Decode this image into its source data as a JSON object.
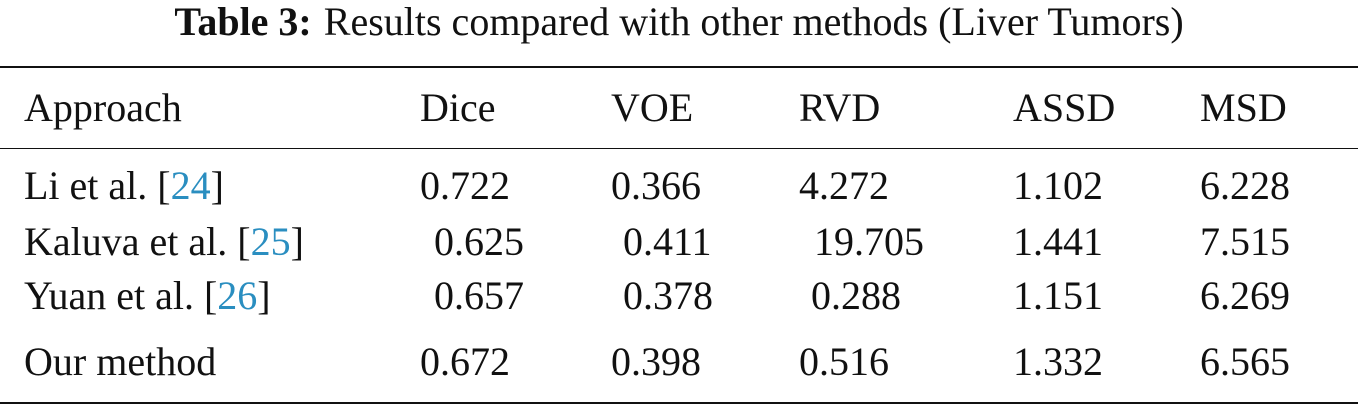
{
  "caption": {
    "label": "Table 3:",
    "text": "Results compared with other methods (Liver Tumors)"
  },
  "table": {
    "headers": [
      "Approach",
      "Dice",
      "VOE",
      "RVD",
      "ASSD",
      "MSD"
    ],
    "rows": [
      {
        "approach": "Li et al.",
        "ref": "24",
        "values": [
          "0.722",
          "0.366",
          "4.272",
          "1.102",
          "6.228"
        ]
      },
      {
        "approach": "Kaluva et al.",
        "ref": "25",
        "values": [
          "0.625",
          "0.411",
          "19.705",
          "1.441",
          "7.515"
        ]
      },
      {
        "approach": "Yuan et al.",
        "ref": "26",
        "values": [
          "0.657",
          "0.378",
          "0.288",
          "1.151",
          "6.269"
        ]
      },
      {
        "approach": "Our method",
        "ref": "",
        "values": [
          "0.672",
          "0.398",
          "0.516",
          "1.332",
          "6.565"
        ]
      }
    ]
  }
}
